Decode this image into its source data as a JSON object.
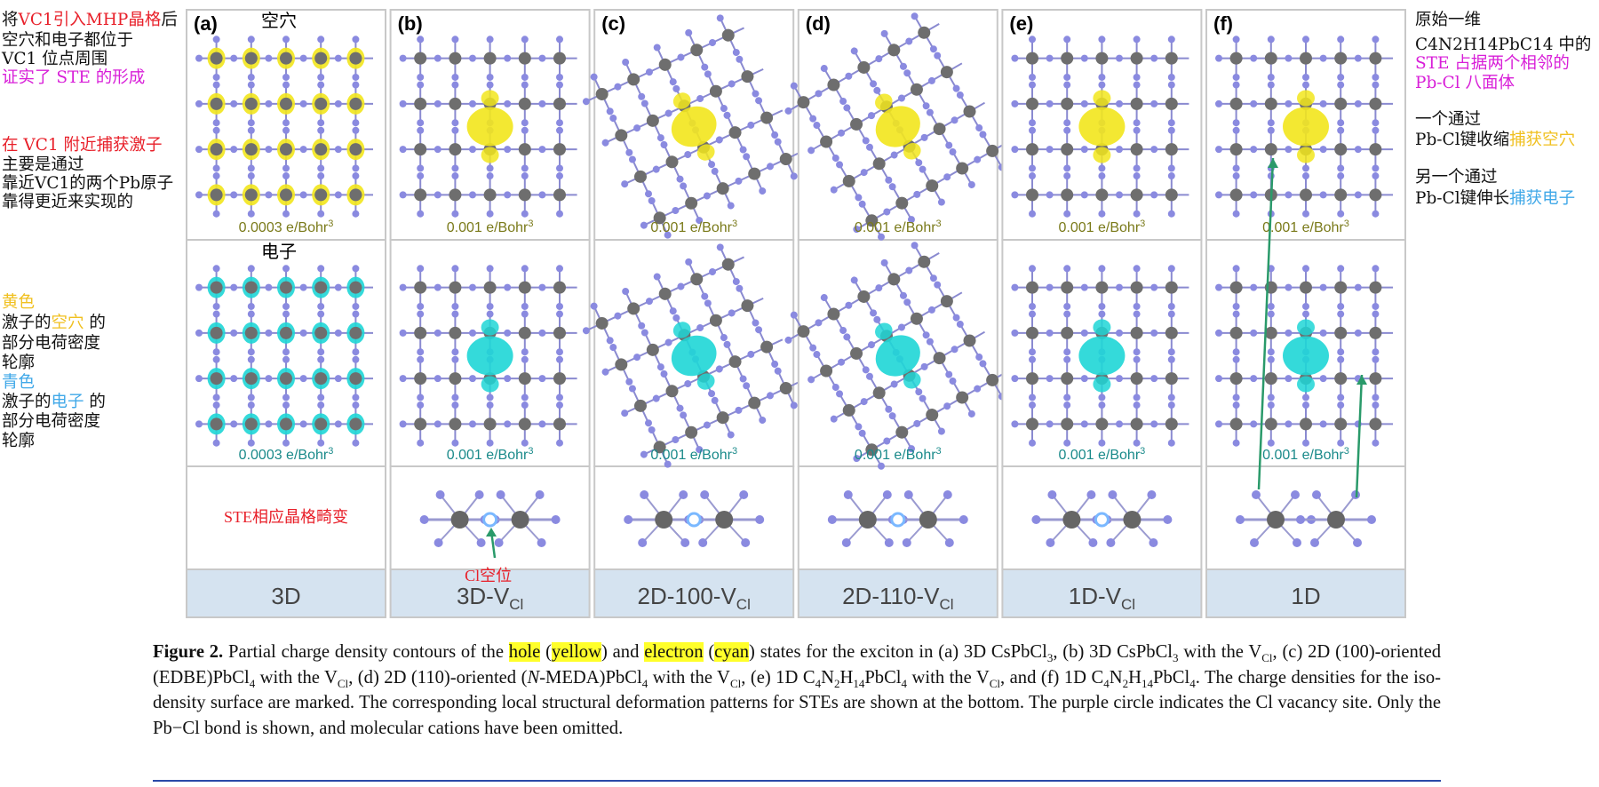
{
  "left_notes": [
    [
      {
        "text": "将"
      },
      {
        "text": "VC1引入MHP晶格",
        "color": "#e8202a"
      },
      {
        "text": "后"
      }
    ],
    [
      {
        "text": "空穴和电子都位于"
      }
    ],
    [
      {
        "text": "VC1 位点周围"
      }
    ],
    [
      {
        "text": "证实了 STE 的形成",
        "color": "#d81ed8"
      }
    ],
    [
      {
        "text": "在 VC1 附近捕获激子",
        "color": "#e8202a"
      }
    ],
    [
      {
        "text": "主要是通过"
      }
    ],
    [
      {
        "text": "靠近VC1的两个Pb原子"
      }
    ],
    [
      {
        "text": "靠得更近来实现的"
      }
    ],
    [
      {
        "text": "黄色",
        "color": "#f0c020"
      }
    ],
    [
      {
        "text": "激子的"
      },
      {
        "text": "空穴",
        "color": "#f0c020"
      },
      {
        "text": " 的"
      }
    ],
    [
      {
        "text": "部分电荷密度"
      }
    ],
    [
      {
        "text": "轮廓"
      }
    ],
    [
      {
        "text": "青色",
        "color": "#40a8e8"
      }
    ],
    [
      {
        "text": "激子的"
      },
      {
        "text": "电子",
        "color": "#40a8e8"
      },
      {
        "text": " 的"
      }
    ],
    [
      {
        "text": "部分电荷密度"
      }
    ],
    [
      {
        "text": "轮廓"
      }
    ]
  ],
  "right_notes": [
    [
      {
        "text": "原始一维"
      }
    ],
    [
      {
        "text": "C4N2H14PbC14 中的"
      }
    ],
    [
      {
        "text": "STE 占据两个相邻的",
        "color": "#d81ed8"
      }
    ],
    [
      {
        "text": "Pb-Cl 八面体",
        "color": "#d81ed8"
      }
    ],
    [
      {
        "text": "一个通过"
      }
    ],
    [
      {
        "text": "Pb-Cl键收缩"
      },
      {
        "text": "捕获空穴",
        "color": "#f0c020"
      }
    ],
    [
      {
        "text": "另一个通过"
      }
    ],
    [
      {
        "text": "Pb-Cl键伸长"
      },
      {
        "text": "捕获电子",
        "color": "#40a8e8"
      }
    ]
  ],
  "panels": [
    {
      "letter": "(a)",
      "hole_title": "空穴",
      "hole_density": {
        "text": "0.0003 e/Bohr",
        "sup": "3"
      },
      "electron_title": "电子",
      "electron_density": {
        "text": "0.0003 e/Bohr",
        "sup": "3"
      },
      "deformation_text": "STE相应晶格畸变",
      "label": {
        "main": "3D"
      }
    },
    {
      "letter": "(b)",
      "hole_density": {
        "text": "0.001 e/Bohr",
        "sup": "3"
      },
      "electron_density": {
        "text": "0.001 e/Bohr",
        "sup": "3"
      },
      "vacancy_note": "Cl空位",
      "label": {
        "main": "3D-V",
        "sub": "Cl"
      }
    },
    {
      "letter": "(c)",
      "hole_density": {
        "text": "0.001 e/Bohr",
        "sup": "3"
      },
      "electron_density": {
        "text": "0.001 e/Bohr",
        "sup": "3"
      },
      "label": {
        "main": "2D-100-V",
        "sub": "Cl"
      }
    },
    {
      "letter": "(d)",
      "hole_density": {
        "text": "0.001 e/Bohr",
        "sup": "3"
      },
      "electron_density": {
        "text": "0.001 e/Bohr",
        "sup": "3"
      },
      "label": {
        "main": "2D-110-V",
        "sub": "Cl"
      }
    },
    {
      "letter": "(e)",
      "hole_density": {
        "text": "0.001 e/Bohr",
        "sup": "3"
      },
      "electron_density": {
        "text": "0.001 e/Bohr",
        "sup": "3"
      },
      "label": {
        "main": "1D-V",
        "sub": "Cl"
      }
    },
    {
      "letter": "(f)",
      "hole_density": {
        "text": "0.001 e/Bohr",
        "sup": "3"
      },
      "electron_density": {
        "text": "0.001 e/Bohr",
        "sup": "3"
      },
      "label": {
        "main": "1D"
      }
    }
  ],
  "caption": [
    {
      "text": "Figure 2.",
      "style": "b"
    },
    {
      "text": " Partial charge density contours of the "
    },
    {
      "text": "hole",
      "style": "hl"
    },
    {
      "text": " ("
    },
    {
      "text": "yellow",
      "style": "hl"
    },
    {
      "text": ") and "
    },
    {
      "text": "electron",
      "style": "hl"
    },
    {
      "text": " ("
    },
    {
      "text": "cyan",
      "style": "hl"
    },
    {
      "text": ") states for the exciton in (a) 3D CsPbCl"
    },
    {
      "text": "3",
      "style": "sub"
    },
    {
      "text": ", (b) 3D CsPbCl"
    },
    {
      "text": "3",
      "style": "sub"
    },
    {
      "text": " with the V"
    },
    {
      "text": "Cl",
      "style": "sub"
    },
    {
      "text": ", (c) 2D (100)-oriented (EDBE)PbCl"
    },
    {
      "text": "4",
      "style": "sub"
    },
    {
      "text": " with the V"
    },
    {
      "text": "Cl",
      "style": "sub"
    },
    {
      "text": ", (d) 2D (110)-oriented ("
    },
    {
      "text": "N",
      "style": "i"
    },
    {
      "text": "-MEDA)PbCl"
    },
    {
      "text": "4",
      "style": "sub"
    },
    {
      "text": " with the V"
    },
    {
      "text": "Cl",
      "style": "sub"
    },
    {
      "text": ", (e) 1D C"
    },
    {
      "text": "4",
      "style": "sub"
    },
    {
      "text": "N"
    },
    {
      "text": "2",
      "style": "sub"
    },
    {
      "text": "H"
    },
    {
      "text": "14",
      "style": "sub"
    },
    {
      "text": "PbCl"
    },
    {
      "text": "4",
      "style": "sub"
    },
    {
      "text": " with the V"
    },
    {
      "text": "Cl",
      "style": "sub"
    },
    {
      "text": ", and (f) 1D C"
    },
    {
      "text": "4",
      "style": "sub"
    },
    {
      "text": "N"
    },
    {
      "text": "2",
      "style": "sub"
    },
    {
      "text": "H"
    },
    {
      "text": "14",
      "style": "sub"
    },
    {
      "text": "PbCl"
    },
    {
      "text": "4",
      "style": "sub"
    },
    {
      "text": ". The charge densities for the iso-density surface are marked. The corresponding local structural deformation patterns for STEs are shown at the bottom. The purple circle indicates the Cl vacancy site. Only the Pb−Cl bond is shown, and molecular cations have been omitted."
    }
  ]
}
